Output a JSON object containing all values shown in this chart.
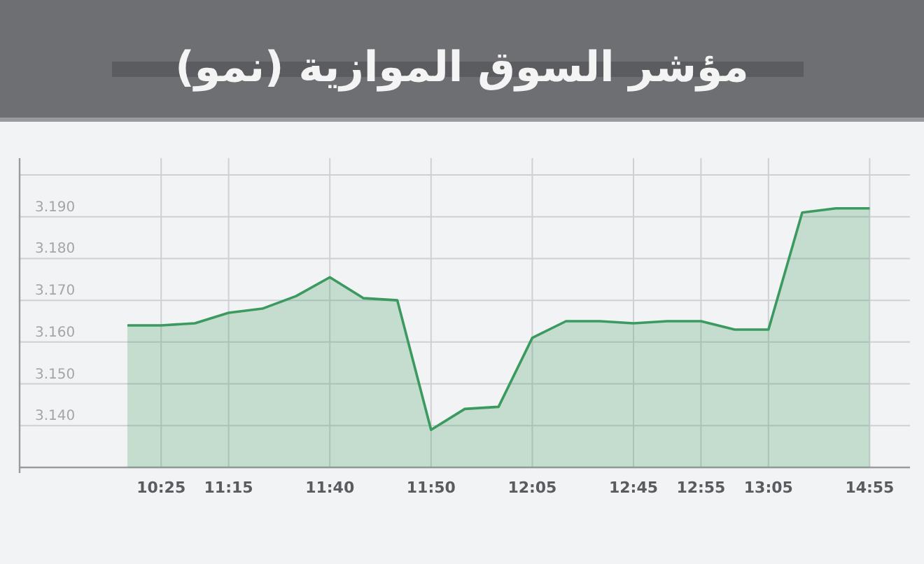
{
  "chart_data": {
    "type": "area",
    "title": "مؤشر السوق الموازية (نمو)",
    "categories": [
      null,
      "10:25",
      null,
      "11:15",
      null,
      null,
      "11:40",
      null,
      null,
      "11:50",
      null,
      null,
      "12:05",
      null,
      null,
      "12:45",
      null,
      "12:55",
      null,
      "13:05",
      null,
      null,
      "14:55"
    ],
    "values": [
      3.164,
      3.164,
      3.1645,
      3.167,
      3.168,
      3.171,
      3.1755,
      3.1705,
      3.17,
      3.139,
      3.144,
      3.1445,
      3.161,
      3.165,
      3.165,
      3.1645,
      3.165,
      3.165,
      3.163,
      3.163,
      3.191,
      3.192,
      3.192
    ],
    "color": "#3b9a5f",
    "ylim": [
      3.13,
      3.2
    ],
    "yticks": [
      {
        "value": 3.14,
        "label": "3.140"
      },
      {
        "value": 3.15,
        "label": "3.150"
      },
      {
        "value": 3.16,
        "label": "3.160"
      },
      {
        "value": 3.17,
        "label": "3.170"
      },
      {
        "value": 3.18,
        "label": "3.180"
      },
      {
        "value": 3.19,
        "label": "3.190"
      },
      {
        "value": 3.2,
        "label": null
      }
    ],
    "grid": true
  }
}
